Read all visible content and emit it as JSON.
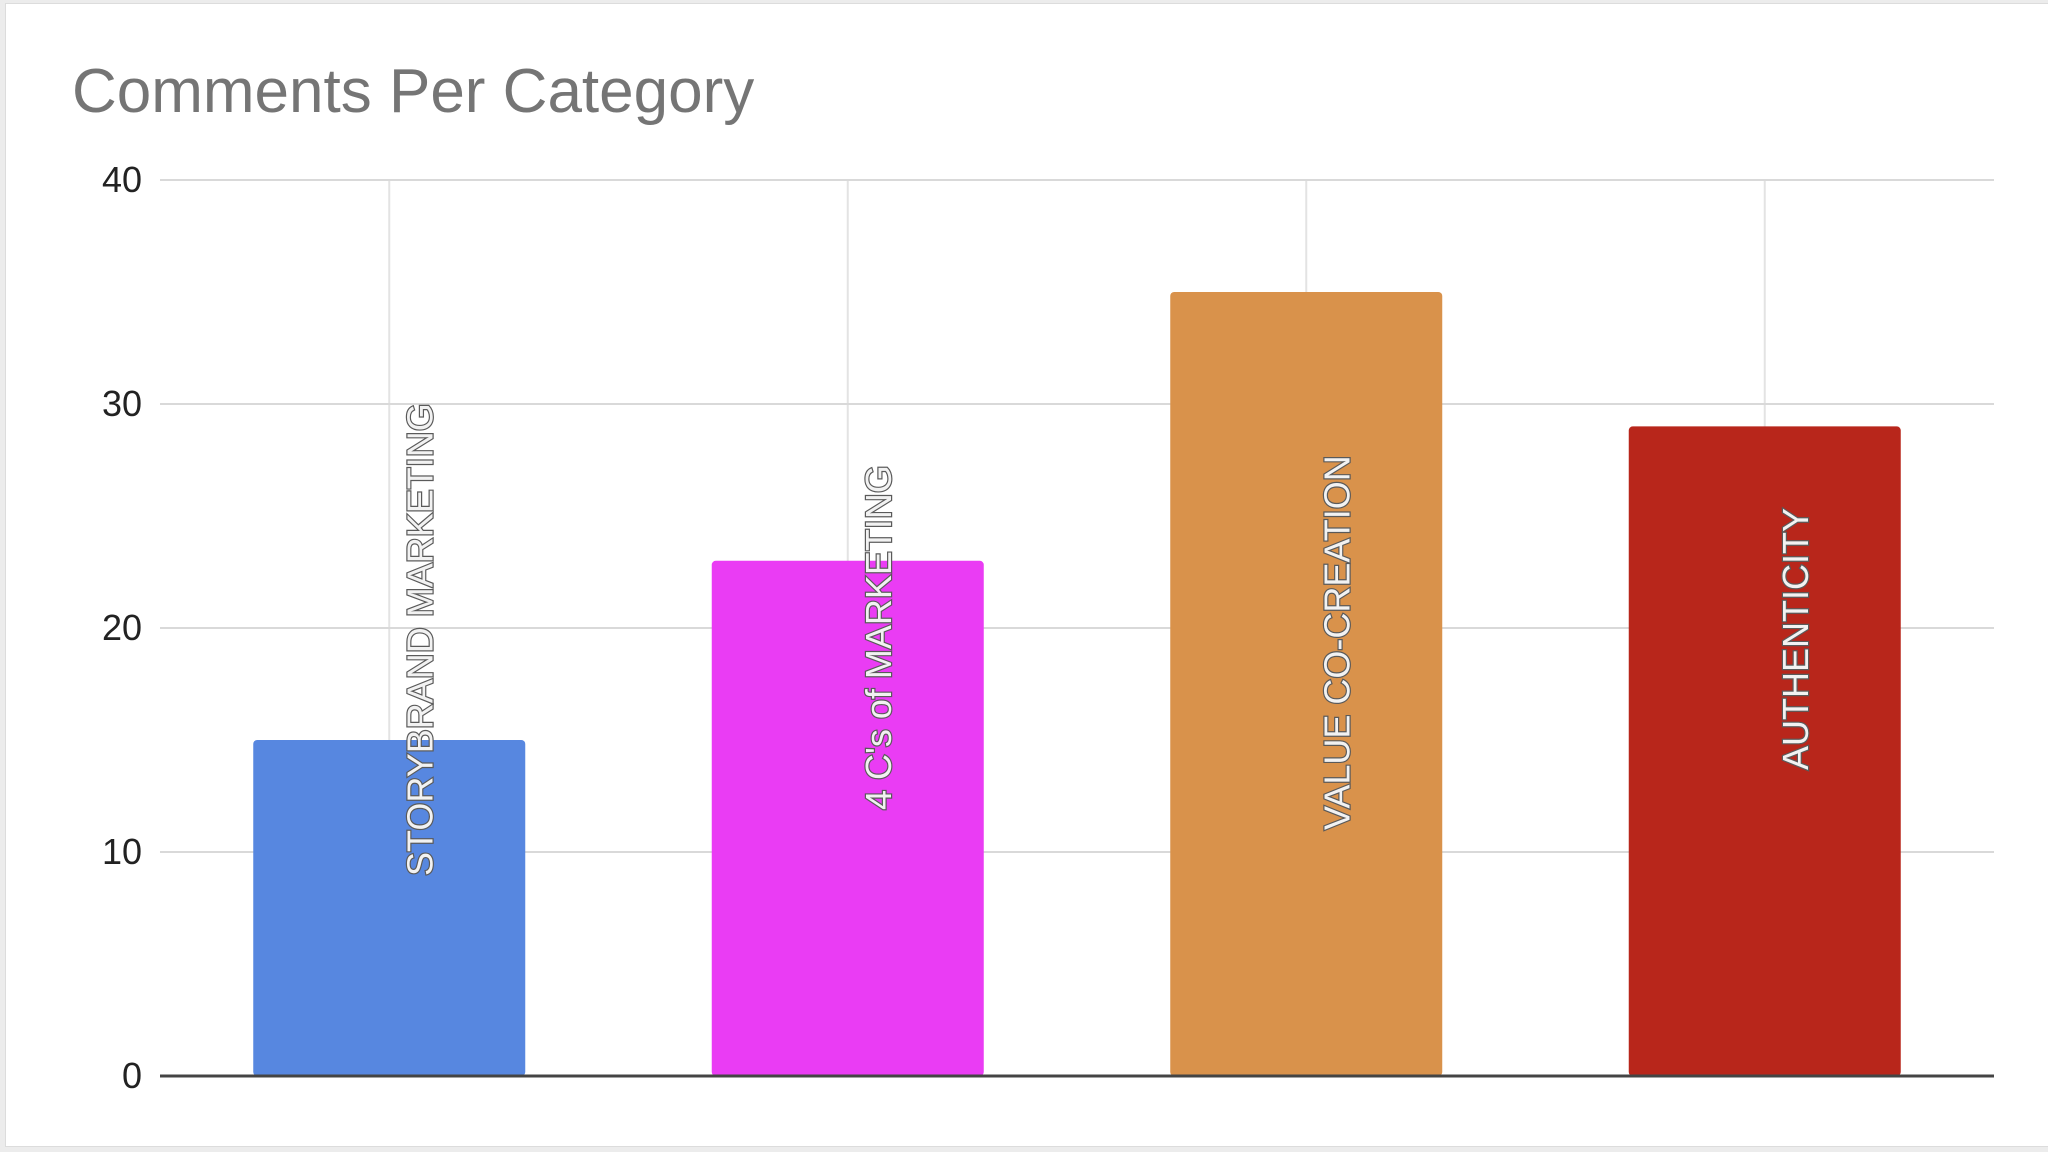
{
  "chart_data": {
    "type": "bar",
    "title": "Comments Per Category",
    "xlabel": "",
    "ylabel": "",
    "categories": [
      "STORYBRAND MARKETING",
      "4 C's of MARKETING",
      "VALUE CO-CREATION",
      "AUTHENTICITY"
    ],
    "values": [
      15,
      23,
      35,
      29
    ],
    "colors": [
      "#5787e0",
      "#ea3cf4",
      "#d9924b",
      "#b8261b"
    ],
    "ylim": [
      0,
      40
    ],
    "yticks": [
      0,
      10,
      20,
      30,
      40
    ],
    "grid": true,
    "legend": "none"
  }
}
